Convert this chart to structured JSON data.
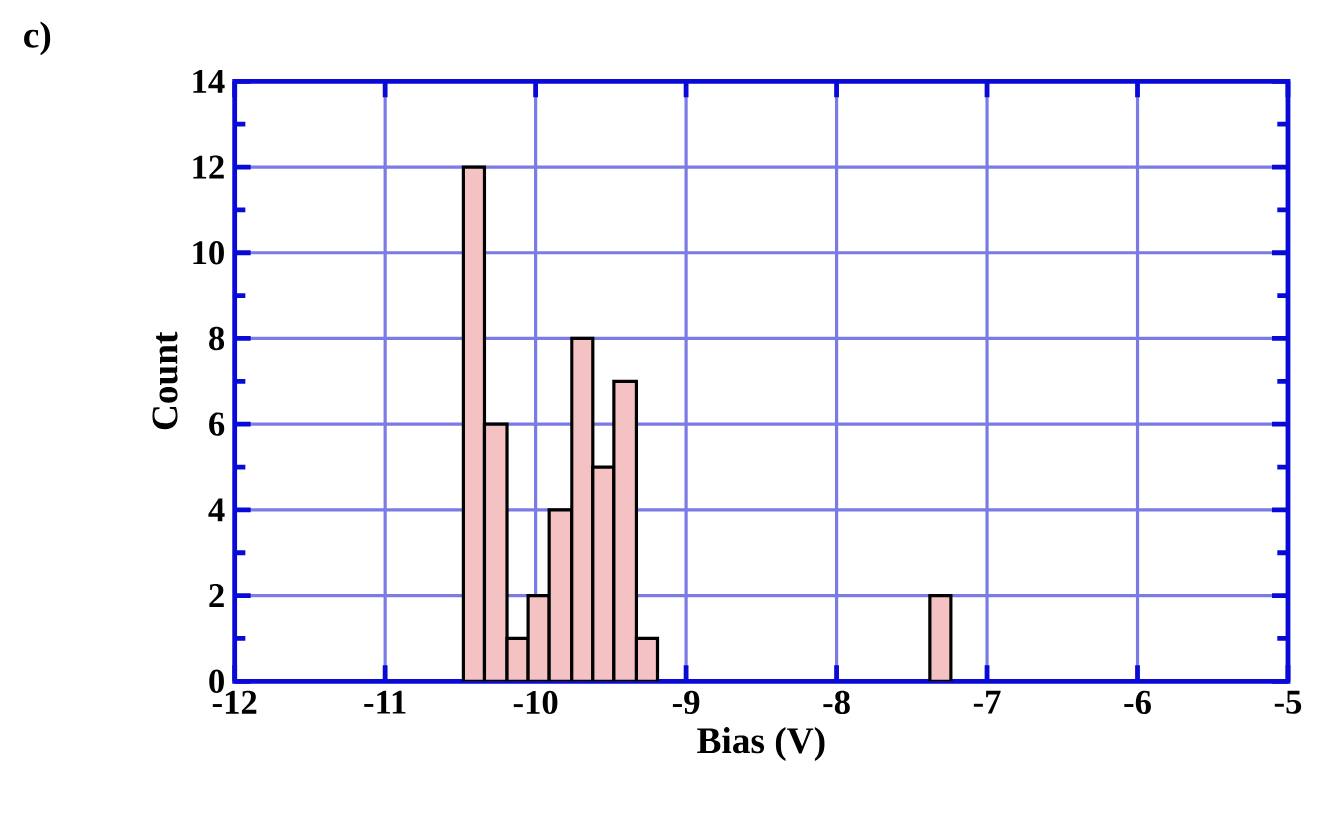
{
  "chart_data": {
    "type": "histogram",
    "xlabel": "Bias (V)",
    "ylabel": "Count",
    "annotations": [
      "c)"
    ],
    "bins": [
      -10.48,
      -10.34,
      -10.19,
      -10.05,
      -9.91,
      -9.76,
      -9.62,
      -9.48,
      -9.33,
      -9.19,
      -7.38,
      -7.24
    ],
    "values": [
      12,
      6,
      1,
      2,
      4,
      8,
      5,
      7,
      1,
      0,
      2
    ],
    "color": "#f4c2c2",
    "xlim": [
      -12,
      -5
    ],
    "xticks": [
      -12,
      -11,
      -10,
      -9,
      -8,
      -7,
      -6,
      -5
    ],
    "ylim": [
      0,
      14
    ],
    "yticks": [
      0,
      2,
      4,
      6,
      8,
      10,
      12,
      14
    ],
    "grid": true
  }
}
